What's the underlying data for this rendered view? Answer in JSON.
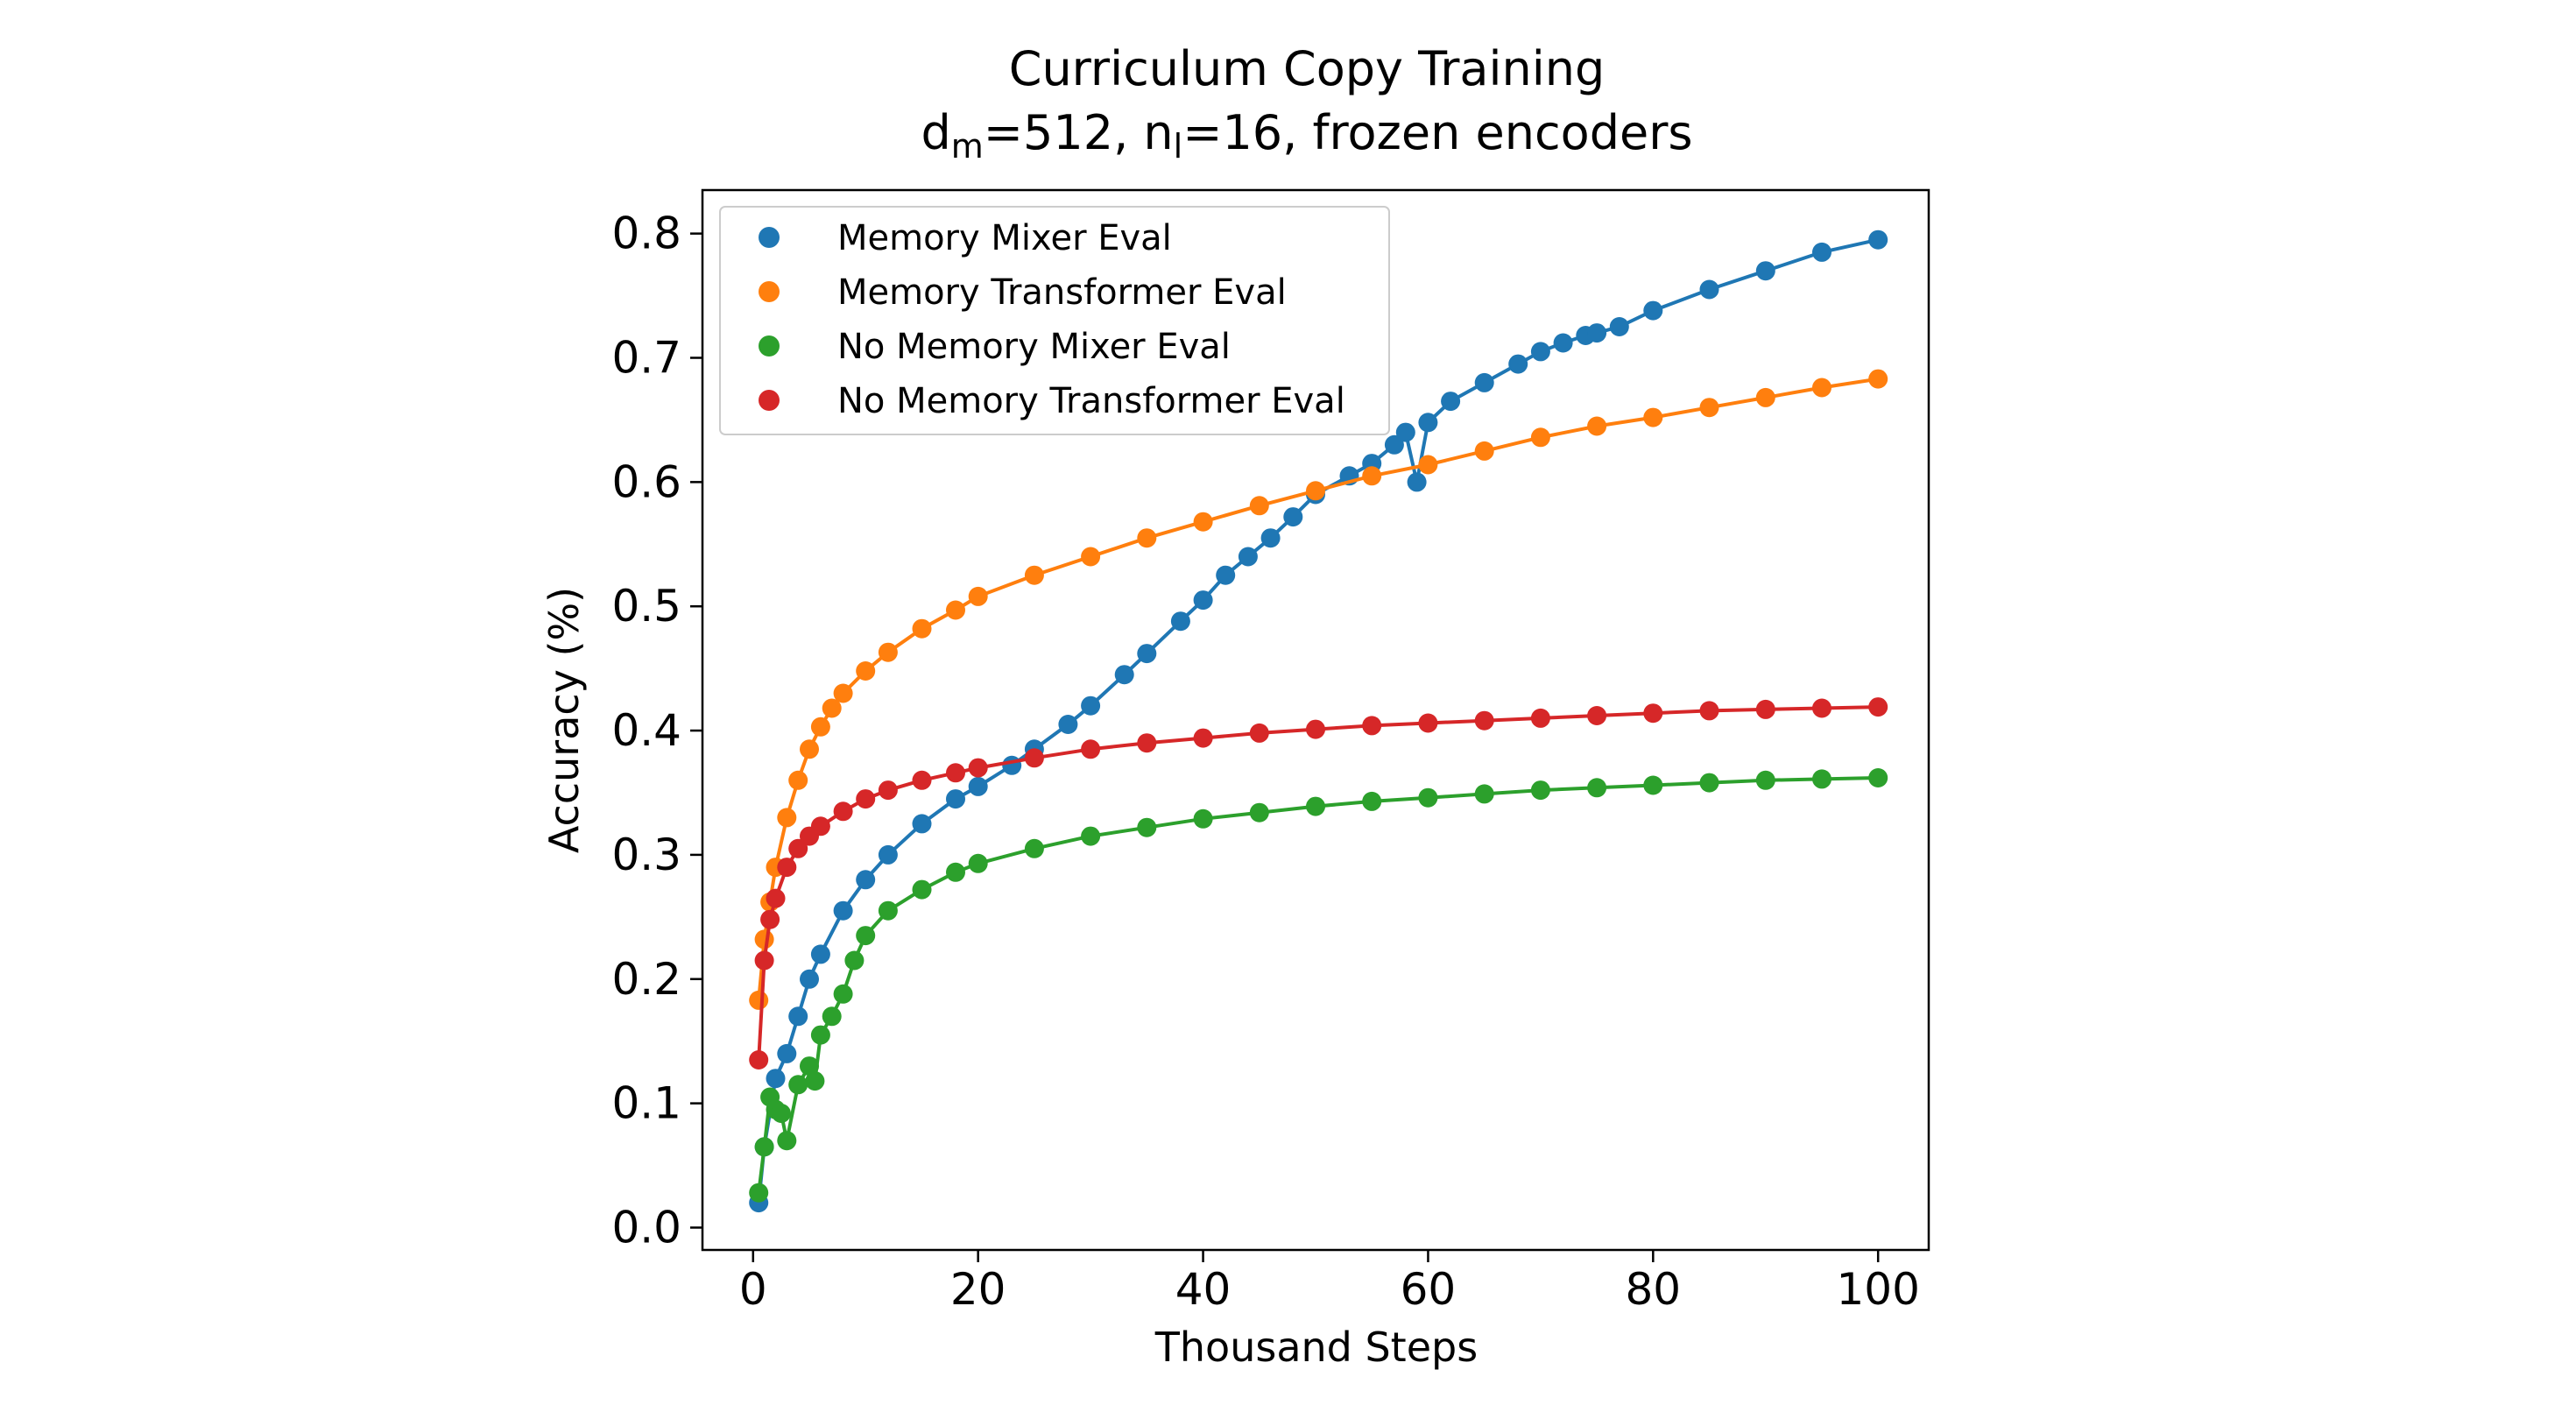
{
  "chart_data": {
    "type": "line",
    "title_line1": "Curriculum Copy Training",
    "title_line2": {
      "d": "d",
      "d_sub": "m",
      "mid": "=512, n",
      "n_sub": "l",
      "rest": "=16, frozen encoders"
    },
    "xlabel": "Thousand Steps",
    "ylabel": "Accuracy (%)",
    "xlim": [
      -4.5,
      104.5
    ],
    "ylim": [
      -0.018,
      0.835
    ],
    "xticks": [
      0,
      20,
      40,
      60,
      80,
      100
    ],
    "yticks": [
      0.0,
      0.1,
      0.2,
      0.3,
      0.4,
      0.5,
      0.6,
      0.7,
      0.8
    ],
    "xtick_labels": [
      "0",
      "20",
      "40",
      "60",
      "80",
      "100"
    ],
    "ytick_labels": [
      "0.0",
      "0.1",
      "0.2",
      "0.3",
      "0.4",
      "0.5",
      "0.6",
      "0.7",
      "0.8"
    ],
    "grid": false,
    "legend_position": "top-left",
    "series": [
      {
        "name": "Memory Mixer Eval",
        "color": "#1f77b4",
        "x": [
          0.5,
          1,
          2,
          3,
          4,
          5,
          6,
          8,
          10,
          12,
          15,
          18,
          20,
          23,
          25,
          28,
          30,
          33,
          35,
          38,
          40,
          42,
          44,
          46,
          48,
          50,
          53,
          55,
          57,
          58,
          59,
          60,
          62,
          65,
          68,
          70,
          72,
          74,
          75,
          77,
          80,
          85,
          90,
          95,
          100
        ],
        "y": [
          0.02,
          0.065,
          0.12,
          0.14,
          0.17,
          0.2,
          0.22,
          0.255,
          0.28,
          0.3,
          0.325,
          0.345,
          0.355,
          0.372,
          0.385,
          0.405,
          0.42,
          0.445,
          0.462,
          0.488,
          0.505,
          0.525,
          0.54,
          0.555,
          0.572,
          0.59,
          0.605,
          0.615,
          0.63,
          0.64,
          0.6,
          0.648,
          0.665,
          0.68,
          0.695,
          0.705,
          0.712,
          0.718,
          0.72,
          0.725,
          0.738,
          0.755,
          0.77,
          0.785,
          0.795
        ]
      },
      {
        "name": "Memory Transformer Eval",
        "color": "#ff7f0e",
        "x": [
          0.5,
          1,
          1.5,
          2,
          3,
          4,
          5,
          6,
          7,
          8,
          10,
          12,
          15,
          18,
          20,
          25,
          30,
          35,
          40,
          45,
          50,
          55,
          60,
          65,
          70,
          75,
          80,
          85,
          90,
          95,
          100
        ],
        "y": [
          0.183,
          0.232,
          0.262,
          0.29,
          0.33,
          0.36,
          0.385,
          0.403,
          0.418,
          0.43,
          0.448,
          0.463,
          0.482,
          0.497,
          0.508,
          0.525,
          0.54,
          0.555,
          0.568,
          0.581,
          0.593,
          0.605,
          0.614,
          0.625,
          0.636,
          0.645,
          0.652,
          0.66,
          0.668,
          0.676,
          0.683
        ]
      },
      {
        "name": "No Memory Mixer Eval",
        "color": "#2ca02c",
        "x": [
          0.5,
          1,
          1.5,
          2,
          2.5,
          3,
          4,
          5,
          5.5,
          6,
          7,
          8,
          9,
          10,
          12,
          15,
          18,
          20,
          25,
          30,
          35,
          40,
          45,
          50,
          55,
          60,
          65,
          70,
          75,
          80,
          85,
          90,
          95,
          100
        ],
        "y": [
          0.028,
          0.065,
          0.105,
          0.095,
          0.092,
          0.07,
          0.115,
          0.13,
          0.118,
          0.155,
          0.17,
          0.188,
          0.215,
          0.235,
          0.255,
          0.272,
          0.286,
          0.293,
          0.305,
          0.315,
          0.322,
          0.329,
          0.334,
          0.339,
          0.343,
          0.346,
          0.349,
          0.352,
          0.354,
          0.356,
          0.358,
          0.36,
          0.361,
          0.362
        ]
      },
      {
        "name": "No Memory Transformer Eval",
        "color": "#d62728",
        "x": [
          0.5,
          1,
          1.5,
          2,
          3,
          4,
          5,
          6,
          8,
          10,
          12,
          15,
          18,
          20,
          25,
          30,
          35,
          40,
          45,
          50,
          55,
          60,
          65,
          70,
          75,
          80,
          85,
          90,
          95,
          100
        ],
        "y": [
          0.135,
          0.215,
          0.248,
          0.265,
          0.29,
          0.305,
          0.315,
          0.323,
          0.335,
          0.345,
          0.352,
          0.36,
          0.366,
          0.37,
          0.378,
          0.385,
          0.39,
          0.394,
          0.398,
          0.401,
          0.404,
          0.406,
          0.408,
          0.41,
          0.412,
          0.414,
          0.416,
          0.417,
          0.418,
          0.419
        ]
      }
    ]
  }
}
